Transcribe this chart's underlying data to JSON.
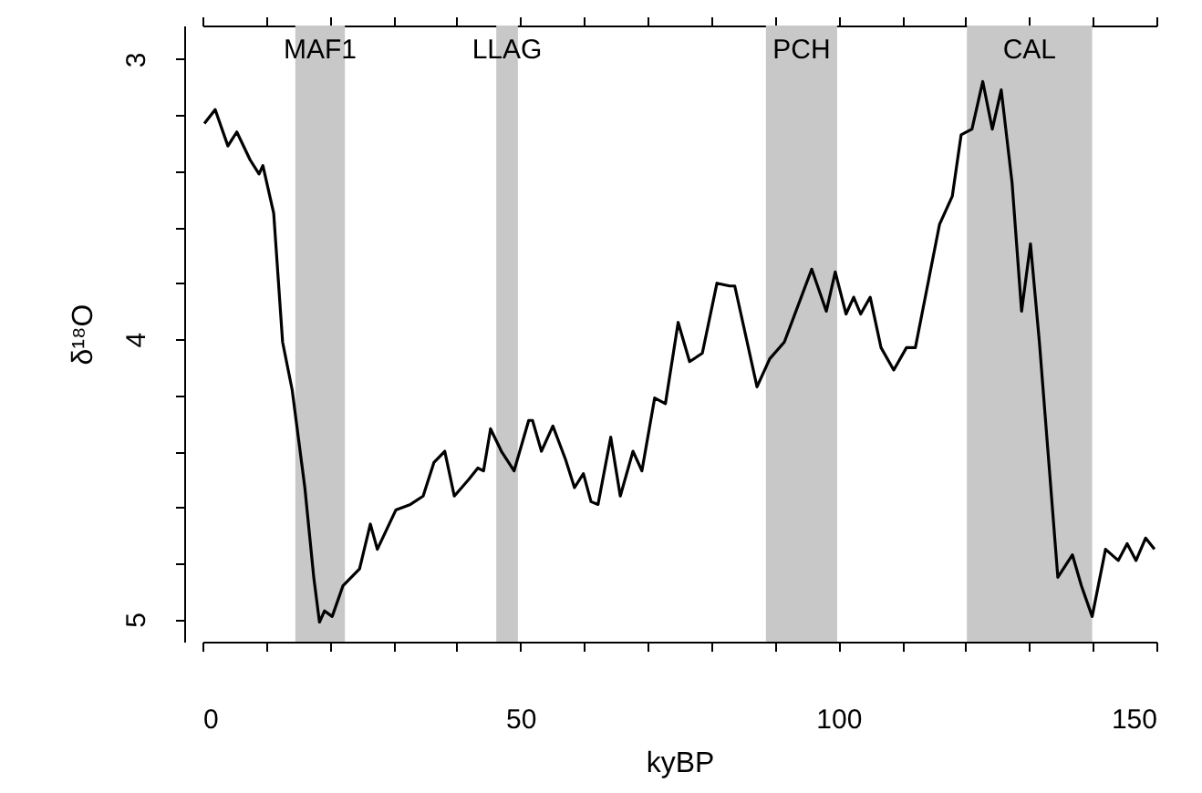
{
  "chart_data": {
    "type": "line",
    "xlabel": "kyBP",
    "ylabel": "δ¹⁸O",
    "x": [
      0.3,
      2,
      4,
      5.4,
      7.5,
      8.9,
      9.5,
      11.2,
      12.6,
      14.1,
      16.1,
      17.5,
      18.4,
      19.2,
      20.4,
      22.1,
      24.7,
      26.4,
      27.5,
      30.4,
      32.7,
      34.7,
      36.4,
      38.1,
      39.6,
      41.9,
      43.3,
      44.2,
      45.3,
      47,
      49,
      51.3,
      51.9,
      53.3,
      55.1,
      57.1,
      58.5,
      59.9,
      61.1,
      62.2,
      64.2,
      65.7,
      67.7,
      69.1,
      71.1,
      72.8,
      74.8,
      76.6,
      78.6,
      80.9,
      82.9,
      83.7,
      87.2,
      89.2,
      91.5,
      95.8,
      98.1,
      99.5,
      101.2,
      102.4,
      103.5,
      105,
      106.7,
      108.7,
      110.7,
      112.1,
      115.9,
      117.9,
      119.3,
      121,
      122.7,
      124.2,
      125.6,
      127.3,
      128.8,
      130.2,
      131.6,
      134.5,
      136.8,
      138.2,
      139.9,
      142,
      144,
      145.4,
      146.8,
      148.3,
      149.7
    ],
    "series": [
      {
        "color": "#000000",
        "values": [
          3.23,
          3.18,
          3.31,
          3.26,
          3.36,
          3.41,
          3.38,
          3.55,
          4.01,
          4.18,
          4.53,
          4.85,
          5.01,
          4.97,
          4.99,
          4.88,
          4.82,
          4.66,
          4.75,
          4.61,
          4.59,
          4.56,
          4.44,
          4.4,
          4.56,
          4.5,
          4.46,
          4.47,
          4.32,
          4.4,
          4.47,
          4.29,
          4.29,
          4.4,
          4.31,
          4.43,
          4.53,
          4.48,
          4.58,
          4.59,
          4.35,
          4.56,
          4.4,
          4.47,
          4.21,
          4.23,
          3.94,
          4.08,
          4.05,
          3.8,
          3.81,
          3.81,
          4.17,
          4.07,
          4.01,
          3.75,
          3.9,
          3.76,
          3.91,
          3.85,
          3.91,
          3.85,
          4.03,
          4.11,
          4.03,
          4.03,
          3.59,
          3.49,
          3.27,
          3.25,
          3.08,
          3.25,
          3.11,
          3.44,
          3.9,
          3.66,
          4.01,
          4.85,
          4.77,
          4.88,
          4.99,
          4.75,
          4.79,
          4.73,
          4.79,
          4.71,
          4.75
        ]
      }
    ],
    "xlim": [
      0,
      150
    ],
    "xticks": [
      0,
      {
        "value": 10,
        "label": null
      },
      {
        "value": 20,
        "label": null
      },
      {
        "value": 30,
        "label": null
      },
      {
        "value": 40,
        "label": null
      },
      50,
      {
        "value": 60,
        "label": null
      },
      {
        "value": 70,
        "label": null
      },
      {
        "value": 80,
        "label": null
      },
      {
        "value": 90,
        "label": null
      },
      100,
      {
        "value": 110,
        "label": null
      },
      {
        "value": 120,
        "label": null
      },
      {
        "value": 130,
        "label": null
      },
      {
        "value": 140,
        "label": null
      },
      150
    ],
    "ylim": [
      5.08,
      2.88
    ],
    "yticks": [
      3,
      {
        "value": 3.2,
        "label": null
      },
      {
        "value": 3.4,
        "label": null
      },
      {
        "value": 3.6,
        "label": null
      },
      {
        "value": 3.8,
        "label": null
      },
      4,
      {
        "value": 4.2,
        "label": null
      },
      {
        "value": 4.4,
        "label": null
      },
      {
        "value": 4.6,
        "label": null
      },
      {
        "value": 4.8,
        "label": null
      },
      5
    ],
    "bands": [
      {
        "axis": "x",
        "from": 14.6,
        "to": 22.4,
        "label": "MAF1",
        "color": "#c8c8c8"
      },
      {
        "axis": "x",
        "from": 46.2,
        "to": 49.6,
        "label": "LLAG",
        "color": "#c8c8c8"
      },
      {
        "axis": "x",
        "from": 88.6,
        "to": 99.8,
        "label": "PCH",
        "color": "#c8c8c8"
      },
      {
        "axis": "x",
        "from": 120.2,
        "to": 139.9,
        "label": "CAL",
        "color": "#c8c8c8"
      }
    ],
    "grid": false,
    "marker": "none",
    "line_style": "solid"
  }
}
